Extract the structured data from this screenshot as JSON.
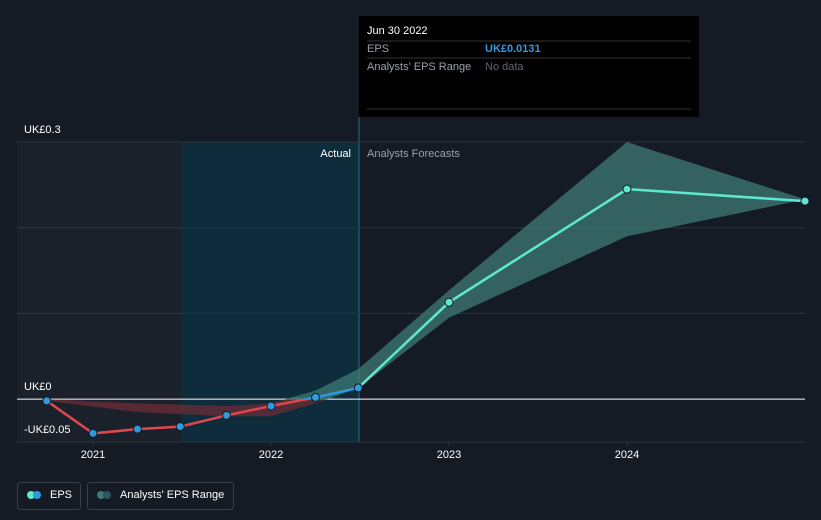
{
  "chart_data": {
    "type": "line",
    "xlim": [
      2020.573,
      2025.0
    ],
    "xticks": [
      2021,
      2022,
      2023,
      2024
    ],
    "ylim": [
      -0.05,
      0.3
    ],
    "yticks": [
      {
        "value": -0.05,
        "label": "-UK£0.05"
      },
      {
        "value": 0,
        "label": "UK£0"
      },
      {
        "value": 0.1,
        "label": null
      },
      {
        "value": 0.2,
        "label": null
      },
      {
        "value": 0.3,
        "label": "UK£0.3"
      }
    ],
    "grid": true,
    "actual_label": "Actual",
    "forecast_label": "Analysts Forecasts",
    "series": [
      {
        "name": "EPS",
        "color": "#2f9ae0",
        "negative_color": "#e0474c",
        "x": [
          2020.74,
          2021.0,
          2021.25,
          2021.49,
          2021.75,
          2022.0,
          2022.25,
          2022.49
        ],
        "values": [
          -0.002,
          -0.04,
          -0.035,
          -0.032,
          -0.019,
          -0.008,
          0.002,
          0.0131
        ]
      }
    ],
    "forecast": {
      "color": "#5ee8cf",
      "x": [
        2022.49,
        2023.0,
        2024.0,
        2025.0
      ],
      "values": [
        0.0131,
        0.113,
        0.245,
        0.231
      ]
    },
    "range": {
      "name": "Analysts' EPS Range",
      "color": "#3d7a74",
      "negative_color": "#6a2c36",
      "x": [
        2020.74,
        2021.25,
        2021.75,
        2022.0,
        2022.25,
        2022.49,
        2023.0,
        2024.0,
        2025.0
      ],
      "low": [
        -0.002,
        -0.015,
        -0.02,
        -0.02,
        -0.005,
        0.013,
        0.095,
        0.19,
        0.233
      ],
      "high": [
        0,
        -0.005,
        -0.008,
        -0.005,
        0.01,
        0.035,
        0.127,
        0.3,
        0.233
      ]
    },
    "tooltip": {
      "date": "Jun 30 2022",
      "rows": [
        [
          "EPS",
          "UK£0.0131"
        ],
        [
          "Analysts' EPS Range",
          "No data"
        ]
      ]
    }
  }
}
